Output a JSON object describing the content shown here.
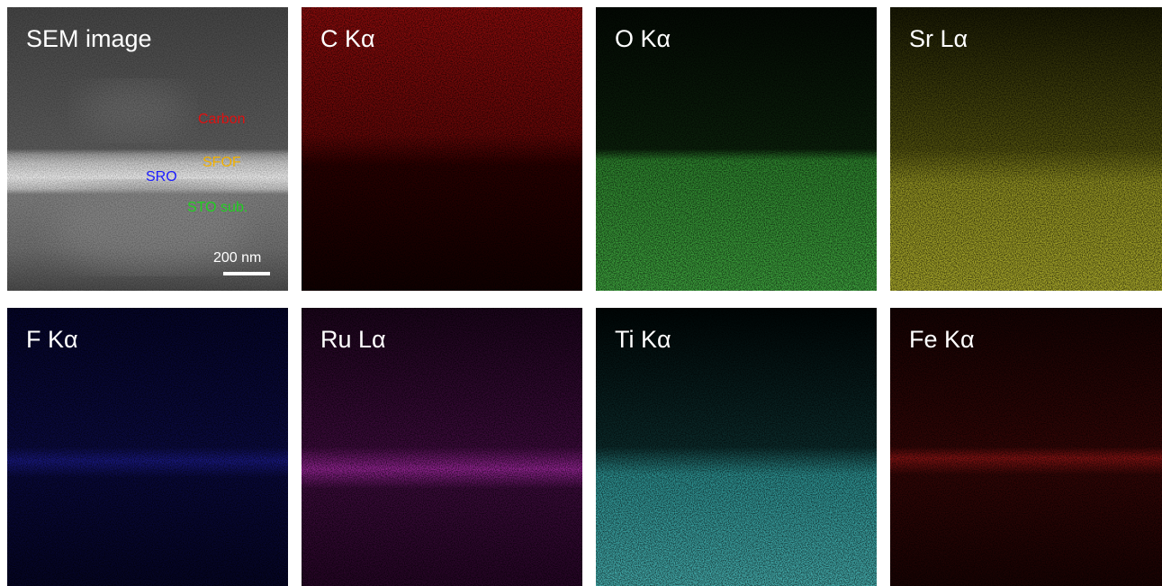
{
  "panels": [
    {
      "label": "SEM image"
    },
    {
      "label": "C Kα"
    },
    {
      "label": "O Kα"
    },
    {
      "label": "Sr Lα"
    },
    {
      "label": "F Kα"
    },
    {
      "label": "Ru Lα"
    },
    {
      "label": "Ti Kα"
    },
    {
      "label": "Fe Kα"
    }
  ],
  "sem_annotations": {
    "carbon": "Carbon",
    "sfof": "SFOF",
    "sro": "SRO",
    "sto": "STO sub.",
    "scale_bar": "200 nm"
  }
}
